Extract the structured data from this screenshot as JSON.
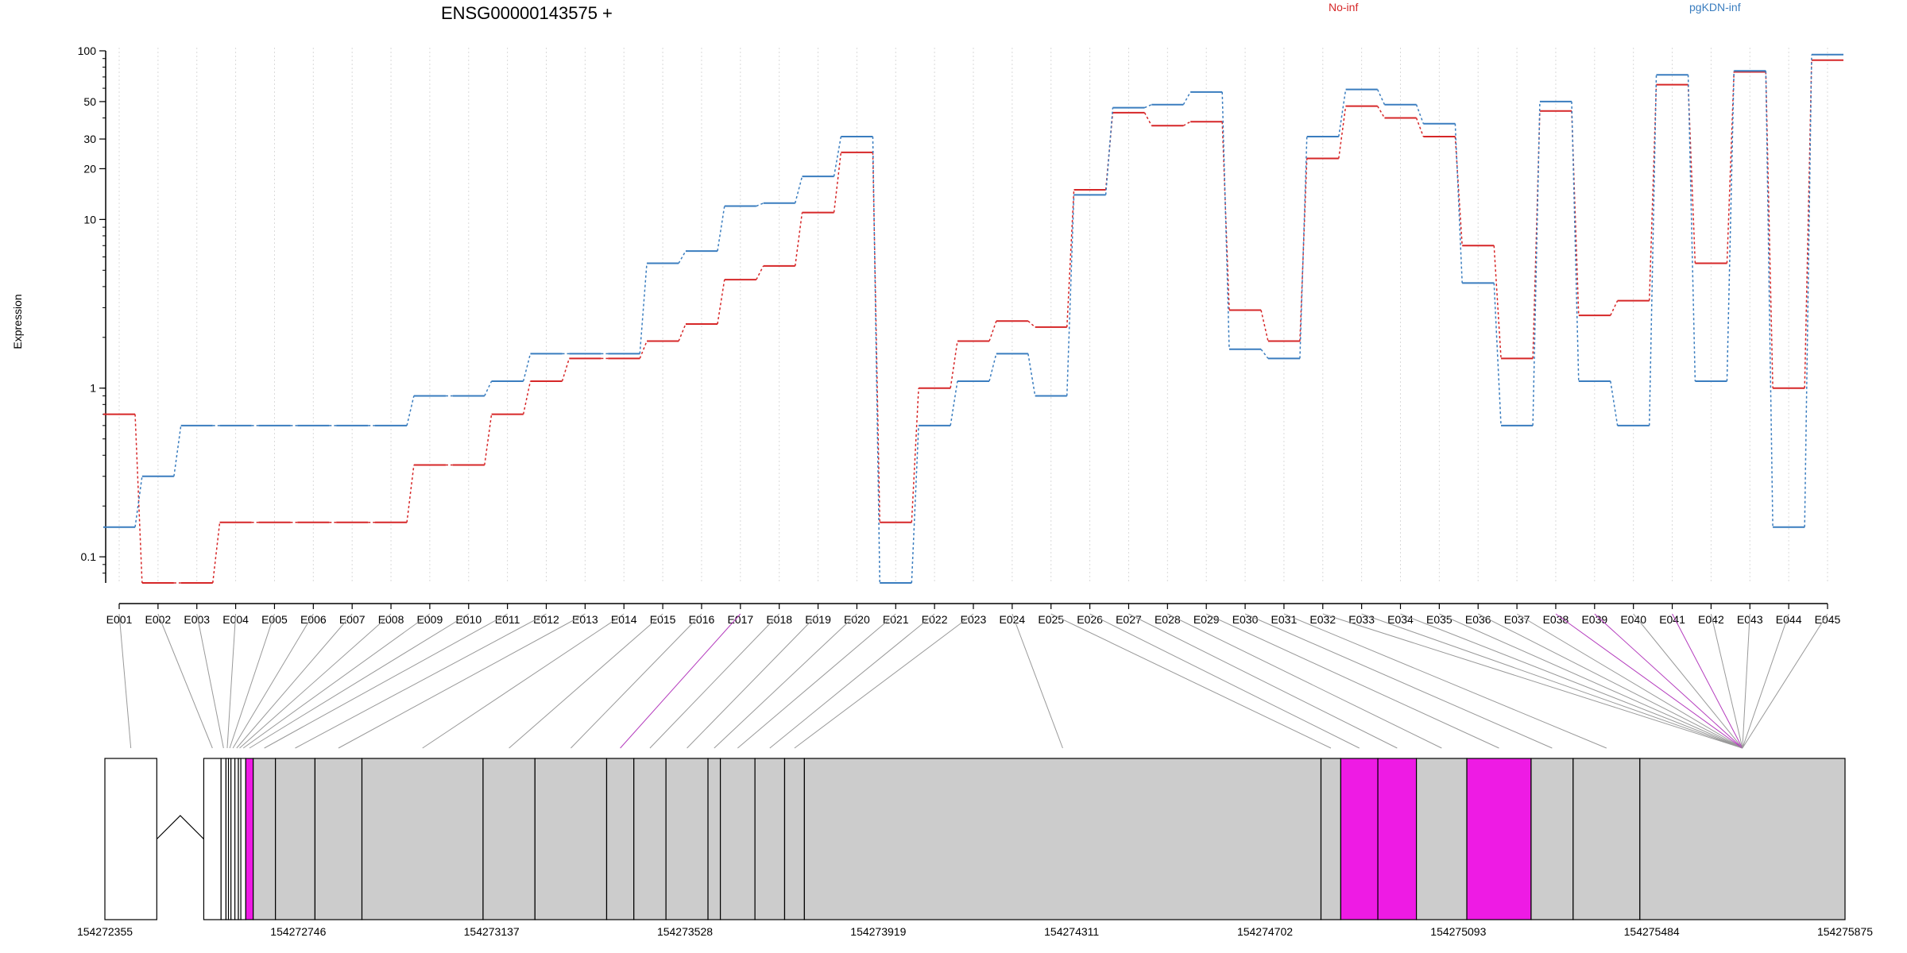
{
  "chart_data": {
    "type": "line",
    "title": "ENSG00000143575 +",
    "ylabel": "Expression",
    "yscale": "log",
    "ylim": [
      0.07,
      100
    ],
    "y_ticks": [
      "0.1",
      "1",
      "10",
      "20",
      "30",
      "50",
      "100"
    ],
    "grid": "vertical-dotted",
    "categories": [
      "E001",
      "E002",
      "E003",
      "E004",
      "E005",
      "E006",
      "E007",
      "E008",
      "E009",
      "E010",
      "E011",
      "E012",
      "E013",
      "E014",
      "E015",
      "E016",
      "E017",
      "E018",
      "E019",
      "E020",
      "E021",
      "E022",
      "E023",
      "E024",
      "E025",
      "E026",
      "E027",
      "E028",
      "E029",
      "E030",
      "E031",
      "E032",
      "E033",
      "E034",
      "E035",
      "E036",
      "E037",
      "E038",
      "E039",
      "E040",
      "E041",
      "E042",
      "E043",
      "E044",
      "E045"
    ],
    "legend_placement": "top-right",
    "series": [
      {
        "name": "No-inf",
        "color": "#d62728",
        "values": [
          0.7,
          0.07,
          0.07,
          0.16,
          0.16,
          0.16,
          0.16,
          0.16,
          0.35,
          0.35,
          0.7,
          1.1,
          1.5,
          1.5,
          1.9,
          2.4,
          4.4,
          5.3,
          11,
          25,
          0.16,
          1,
          1.9,
          2.5,
          2.3,
          15,
          43,
          36,
          38,
          2.9,
          1.9,
          23,
          47,
          40,
          31,
          7,
          1.5,
          44,
          2.7,
          3.3,
          63,
          5.5,
          75,
          1,
          88
        ]
      },
      {
        "name": "pgKDN-inf",
        "color": "#3a7dbf",
        "values": [
          0.15,
          0.3,
          0.6,
          0.6,
          0.6,
          0.6,
          0.6,
          0.6,
          0.9,
          0.9,
          1.1,
          1.6,
          1.6,
          1.6,
          5.5,
          6.5,
          12,
          12.5,
          18,
          31,
          0.07,
          0.6,
          1.1,
          1.6,
          0.9,
          14,
          46,
          48,
          57,
          1.7,
          1.5,
          31,
          59,
          48,
          37,
          4.2,
          0.6,
          50,
          1.1,
          0.6,
          72,
          1.1,
          76,
          0.15,
          95
        ]
      }
    ],
    "gene_model": {
      "start": 154272355,
      "end": 154275875,
      "coordinate_labels": [
        "154272355",
        "154272746",
        "154273137",
        "154273528",
        "154273919",
        "154274311",
        "154274702",
        "154275093",
        "154275484",
        "154275875"
      ],
      "exons": [
        [
          154272355,
          154272460,
          "white"
        ],
        [
          154272555,
          154272590,
          "white"
        ],
        [
          154272590,
          154272600,
          "white"
        ],
        [
          154272600,
          154272605,
          "white"
        ],
        [
          154272605,
          154272610,
          "white"
        ],
        [
          154272610,
          154272618,
          "white"
        ],
        [
          154272618,
          154272625,
          "white"
        ],
        [
          154272625,
          154272630,
          "white"
        ],
        [
          154272630,
          154272640,
          "white"
        ],
        [
          154272640,
          154272655,
          "magenta"
        ],
        [
          154272655,
          154272700,
          "grey"
        ],
        [
          154272700,
          154272780,
          "grey"
        ],
        [
          154272780,
          154272875,
          "grey"
        ],
        [
          154272875,
          154273120,
          "grey"
        ],
        [
          154273120,
          154273225,
          "grey"
        ],
        [
          154273225,
          154273370,
          "grey"
        ],
        [
          154273370,
          154273425,
          "grey"
        ],
        [
          154273425,
          154273490,
          "grey"
        ],
        [
          154273490,
          154273575,
          "grey"
        ],
        [
          154273575,
          154273600,
          "grey"
        ],
        [
          154273600,
          154273670,
          "grey"
        ],
        [
          154273670,
          154273730,
          "grey"
        ],
        [
          154273730,
          154273770,
          "grey"
        ],
        [
          154273770,
          154274815,
          "grey"
        ],
        [
          154274815,
          154274855,
          "grey"
        ],
        [
          154274855,
          154274930,
          "magenta"
        ],
        [
          154274930,
          154275008,
          "magenta"
        ],
        [
          154275008,
          154275110,
          "grey"
        ],
        [
          154275110,
          154275240,
          "magenta"
        ],
        [
          154275240,
          154275325,
          "grey"
        ],
        [
          154275325,
          154275460,
          "grey"
        ],
        [
          154275460,
          154275875,
          "grey"
        ]
      ],
      "highlighted_connectors": [
        16,
        37,
        38,
        40
      ]
    }
  }
}
